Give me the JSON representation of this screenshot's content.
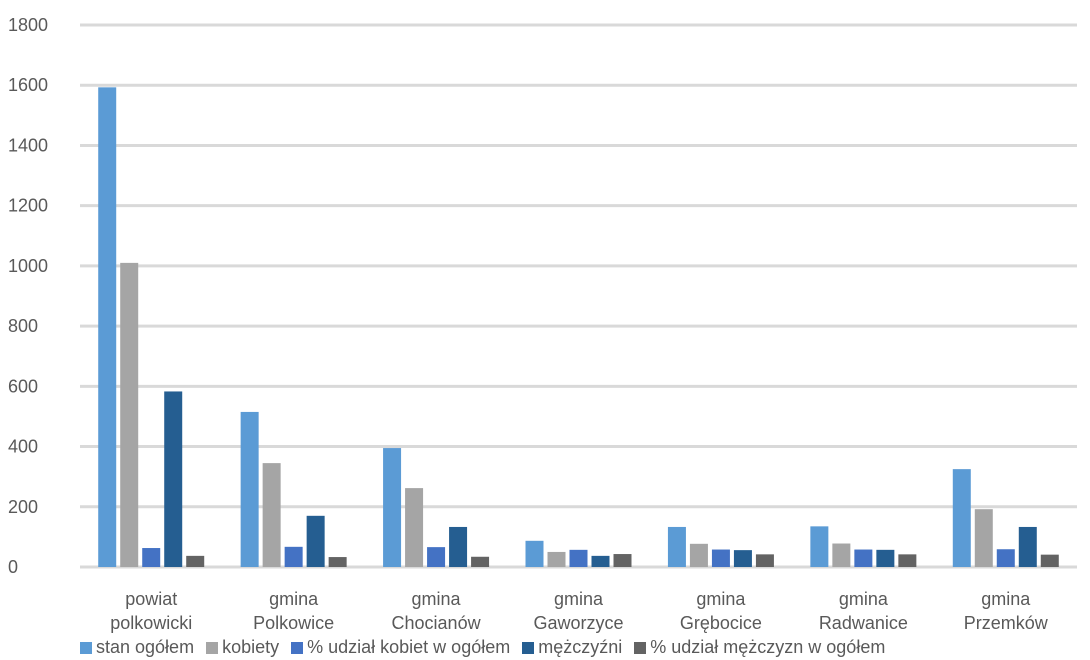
{
  "chart_data": {
    "type": "bar",
    "categories": [
      [
        "powiat",
        "polkowicki"
      ],
      [
        "gmina",
        "Polkowice"
      ],
      [
        "gmina",
        "Chocianów"
      ],
      [
        "gmina",
        "Gaworzyce"
      ],
      [
        "gmina",
        "Grębocice"
      ],
      [
        "gmina",
        "Radwanice"
      ],
      [
        "gmina",
        "Przemków"
      ]
    ],
    "series": [
      {
        "name": "stan ogółem",
        "color": "#5b9bd5",
        "values": [
          1593,
          515,
          395,
          87,
          133,
          135,
          325
        ]
      },
      {
        "name": "kobiety",
        "color": "#a5a5a5",
        "values": [
          1010,
          345,
          262,
          50,
          77,
          78,
          192
        ]
      },
      {
        "name": "% udział kobiet w ogółem",
        "color": "#4472c4",
        "values": [
          63,
          67,
          66,
          57,
          58,
          58,
          59
        ]
      },
      {
        "name": "mężczyźni",
        "color": "#255e91",
        "values": [
          583,
          170,
          133,
          37,
          56,
          57,
          133
        ]
      },
      {
        "name": "% udział mężczyzn w ogółem",
        "color": "#636363",
        "values": [
          37,
          33,
          34,
          43,
          42,
          42,
          41
        ]
      }
    ],
    "y_ticks": [
      "0",
      "200",
      "400",
      "600",
      "800",
      "1000",
      "1200",
      "1400",
      "1600",
      "1800"
    ],
    "ylim": [
      0,
      1800
    ],
    "grid": true,
    "legend_position": "bottom"
  }
}
